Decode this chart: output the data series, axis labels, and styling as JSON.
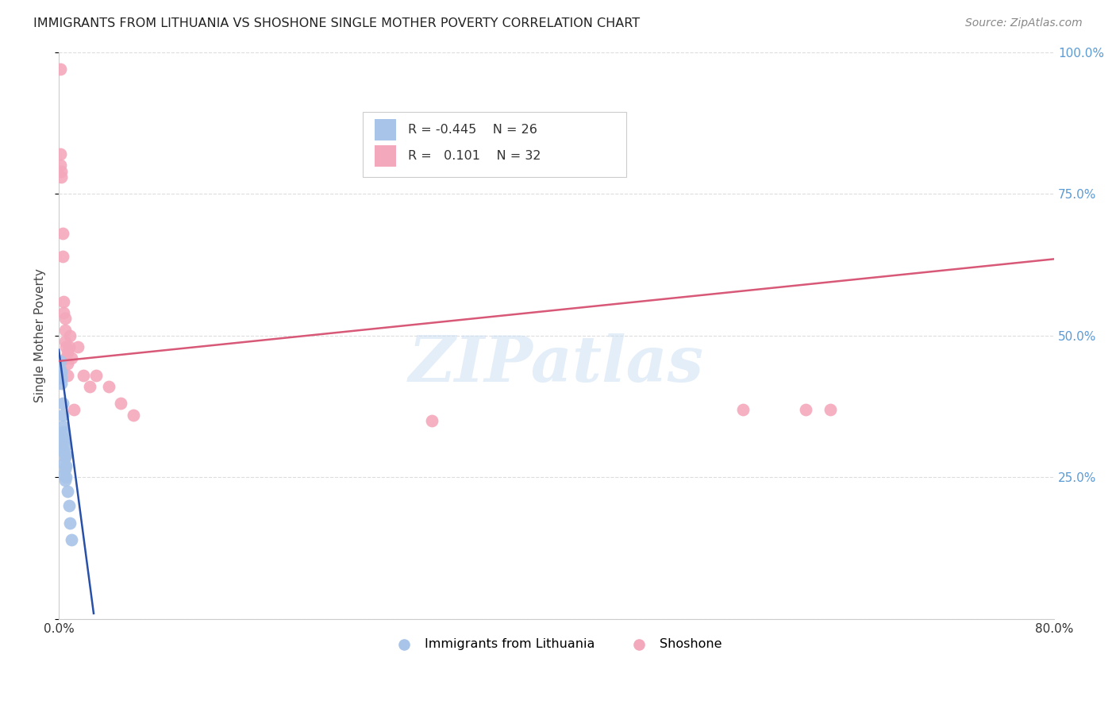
{
  "title": "IMMIGRANTS FROM LITHUANIA VS SHOSHONE SINGLE MOTHER POVERTY CORRELATION CHART",
  "source": "Source: ZipAtlas.com",
  "ylabel": "Single Mother Poverty",
  "watermark": "ZIPatlas",
  "xlim": [
    0.0,
    0.8
  ],
  "ylim": [
    0.0,
    1.0
  ],
  "legend_blue_r": "-0.445",
  "legend_blue_n": "26",
  "legend_pink_r": "0.101",
  "legend_pink_n": "32",
  "blue_color": "#a8c4e8",
  "pink_color": "#f4a8bc",
  "blue_line_color": "#2850a8",
  "pink_line_color": "#d85878",
  "legend_label_blue": "Immigrants from Lithuania",
  "legend_label_pink": "Shoshone",
  "blue_scatter_x": [
    0.001,
    0.001,
    0.002,
    0.002,
    0.002,
    0.003,
    0.003,
    0.003,
    0.003,
    0.003,
    0.004,
    0.004,
    0.004,
    0.004,
    0.004,
    0.005,
    0.005,
    0.005,
    0.005,
    0.006,
    0.006,
    0.006,
    0.007,
    0.008,
    0.009,
    0.01
  ],
  "blue_scatter_y": [
    0.455,
    0.44,
    0.435,
    0.425,
    0.415,
    0.38,
    0.36,
    0.34,
    0.32,
    0.3,
    0.33,
    0.315,
    0.295,
    0.275,
    0.255,
    0.305,
    0.285,
    0.265,
    0.245,
    0.29,
    0.27,
    0.25,
    0.225,
    0.2,
    0.17,
    0.14
  ],
  "pink_scatter_x": [
    0.001,
    0.001,
    0.001,
    0.002,
    0.002,
    0.003,
    0.003,
    0.004,
    0.004,
    0.005,
    0.005,
    0.005,
    0.006,
    0.006,
    0.007,
    0.007,
    0.007,
    0.008,
    0.009,
    0.01,
    0.012,
    0.015,
    0.02,
    0.025,
    0.03,
    0.04,
    0.05,
    0.06,
    0.3,
    0.55,
    0.6,
    0.62
  ],
  "pink_scatter_y": [
    0.97,
    0.82,
    0.8,
    0.79,
    0.78,
    0.68,
    0.64,
    0.56,
    0.54,
    0.53,
    0.51,
    0.49,
    0.48,
    0.46,
    0.47,
    0.45,
    0.43,
    0.48,
    0.5,
    0.46,
    0.37,
    0.48,
    0.43,
    0.41,
    0.43,
    0.41,
    0.38,
    0.36,
    0.35,
    0.37,
    0.37,
    0.37
  ],
  "blue_trend_x": [
    0.0,
    0.028
  ],
  "blue_trend_y": [
    0.475,
    0.01
  ],
  "pink_trend_x": [
    0.0,
    0.8
  ],
  "pink_trend_y": [
    0.455,
    0.635
  ],
  "background_color": "#ffffff",
  "grid_color": "#dddddd",
  "right_tick_color": "#5b9bd5"
}
